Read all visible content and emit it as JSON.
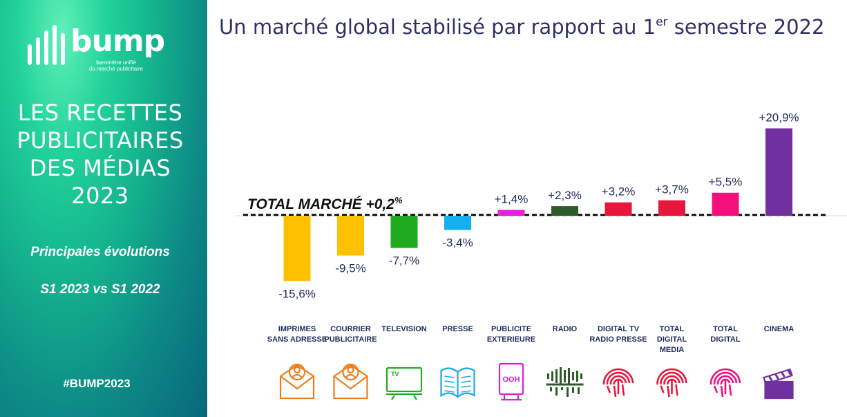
{
  "brand": {
    "name": "bump",
    "tagline_line1": "baromètre unifié",
    "tagline_line2": "du marché publicitaire",
    "colors": {
      "gradient_top": "#5ff0b8",
      "gradient_bottom": "#08677a",
      "title": "#2e3163"
    }
  },
  "sidebar": {
    "title_lines": [
      "LES RECETTES",
      "PUBLICITAIRES",
      "DES MÉDIAS",
      "2023"
    ],
    "subtitle": "Principales évolutions",
    "period": "S1 2023 vs S1 2022",
    "hashtag": "#BUMP2023"
  },
  "header": {
    "title_main": "Un marché global stabilisé par rapport au 1",
    "title_sup": "er",
    "title_end": " semestre 2022"
  },
  "chart_data": {
    "type": "bar",
    "unit": "%",
    "total_label": "TOTAL MARCHÉ +0,2",
    "total_unit": "%",
    "total_value": 0.2,
    "categories": [
      {
        "label_lines": [
          "IMPRIMES",
          "SANS ADRESSE"
        ],
        "value": -15.6,
        "value_label": "-15,6%",
        "color": "#ffc000",
        "icon": "envelope-person-icon",
        "icon_color": "#f07d1b"
      },
      {
        "label_lines": [
          "COURRIER",
          "PUBLICITAIRE"
        ],
        "value": -9.5,
        "value_label": "-9,5%",
        "color": "#ffc000",
        "icon": "envelope-person-icon",
        "icon_color": "#f07d1b"
      },
      {
        "label_lines": [
          "TELEVISION"
        ],
        "value": -7.7,
        "value_label": "-7,7%",
        "color": "#1fab1f",
        "icon": "tv-icon",
        "icon_color": "#1fab1f",
        "icon_text": "TV"
      },
      {
        "label_lines": [
          "PRESSE"
        ],
        "value": -3.4,
        "value_label": "-3,4%",
        "color": "#16b0f0",
        "icon": "newspaper-icon",
        "icon_color": "#16a6e6"
      },
      {
        "label_lines": [
          "PUBLICITE",
          "EXTERIEURE"
        ],
        "value": 1.4,
        "value_label": "+1,4%",
        "color": "#e81ee0",
        "icon": "billboard-icon",
        "icon_color": "#d91fd4",
        "icon_text": "OOH"
      },
      {
        "label_lines": [
          "RADIO"
        ],
        "value": 2.3,
        "value_label": "+2,3%",
        "color": "#2f5a2a",
        "icon": "soundwave-icon",
        "icon_color": "#2f5a2a"
      },
      {
        "label_lines": [
          "DIGITAL TV",
          "RADIO PRESSE"
        ],
        "value": 3.2,
        "value_label": "+3,2%",
        "color": "#e8163c",
        "icon": "fingerprint-icon",
        "icon_color": "#e8163c"
      },
      {
        "label_lines": [
          "TOTAL",
          "DIGITAL",
          "MEDIA"
        ],
        "value": 3.7,
        "value_label": "+3,7%",
        "color": "#e8163c",
        "icon": "fingerprint-icon",
        "icon_color": "#e8163c"
      },
      {
        "label_lines": [
          "TOTAL",
          "DIGITAL"
        ],
        "value": 5.5,
        "value_label": "+5,5%",
        "color": "#f4107a",
        "icon": "fingerprint-icon",
        "icon_color": "#f4107a"
      },
      {
        "label_lines": [
          "CINEMA"
        ],
        "value": 20.9,
        "value_label": "+20,9%",
        "color": "#7030a0",
        "icon": "clapperboard-icon",
        "icon_color": "#7030a0"
      }
    ]
  }
}
